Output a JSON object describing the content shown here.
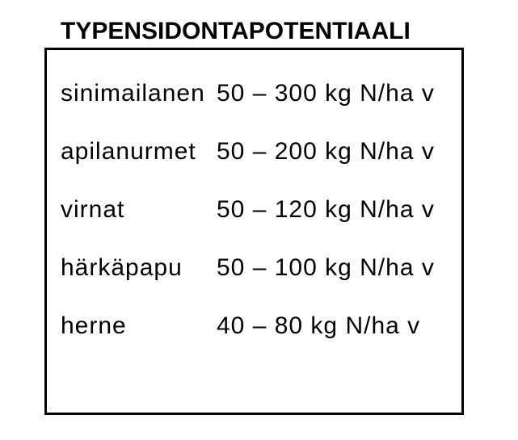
{
  "page": {
    "background_color": "#ffffff",
    "text_color": "#000000",
    "border_color": "#000000"
  },
  "title": "TYPENSIDONTAPOTENTIAALI",
  "table": {
    "rows": [
      {
        "label": "sinimailanen",
        "value": "50 – 300 kg N/ha v"
      },
      {
        "label": "apilanurmet",
        "value": "50 – 200 kg N/ha v"
      },
      {
        "label": "virnat",
        "value": "50 – 120 kg N/ha v"
      },
      {
        "label": "härkäpapu",
        "value": "50 – 100 kg N/ha v"
      },
      {
        "label": "herne",
        "value": "40 – 80 kg N/ha v"
      }
    ]
  }
}
